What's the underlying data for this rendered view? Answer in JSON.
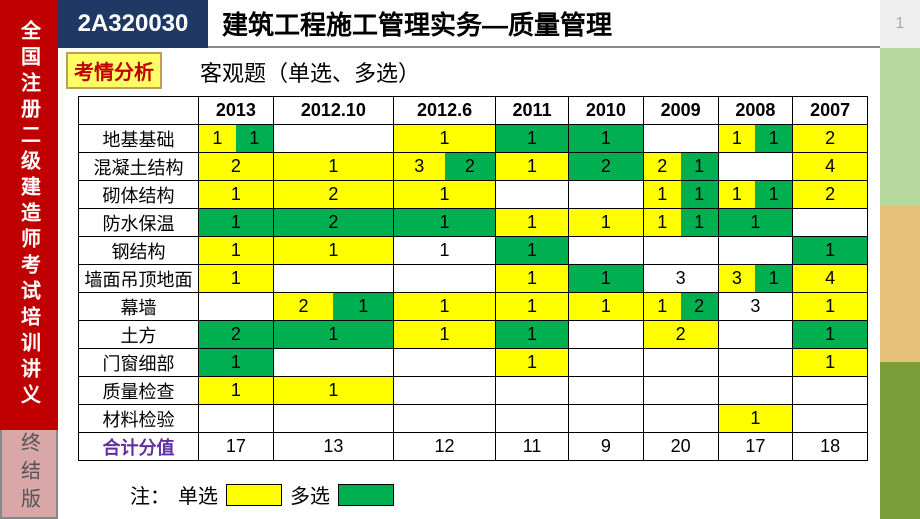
{
  "page_number": "1",
  "sidebar": {
    "red_text": "全国注册二级建造师考试培训讲义",
    "rose_text": "终结版"
  },
  "header": {
    "code": "2A320030",
    "title": "建筑工程施工管理实务—质量管理"
  },
  "badge": "考情分析",
  "subtitle": "客观题（单选、多选）",
  "legend": {
    "prefix": "注：",
    "single_label": "单选",
    "multi_label": "多选"
  },
  "colors": {
    "single": "#ffff00",
    "multi": "#00b050",
    "header_bg": "#203864",
    "sidebar_red": "#c00000",
    "sidebar_rose": "#d9a7a7",
    "right_a": "#b7d8a0",
    "right_b": "#e6c17a",
    "right_c": "#7a9e3a"
  },
  "table": {
    "type": "table",
    "year_headers": [
      "2013",
      "2012.10",
      "2012.6",
      "2011",
      "2010",
      "2009",
      "2008",
      "2007"
    ],
    "rows": [
      {
        "label": "地基基础",
        "cells": [
          {
            "s": "1",
            "m": "1"
          },
          {},
          {
            "s": "1"
          },
          {
            "m": "1"
          },
          {
            "m": "1"
          },
          {},
          {
            "s": "1",
            "m": "1"
          },
          {
            "s": "2"
          }
        ]
      },
      {
        "label": "混凝土结构",
        "cells": [
          {
            "s": "2"
          },
          {
            "s": "1"
          },
          {
            "s": "3",
            "m": "2"
          },
          {
            "s": "1"
          },
          {
            "m": "2"
          },
          {
            "s": "2",
            "m": "1"
          },
          {},
          {
            "s": "4"
          }
        ]
      },
      {
        "label": "砌体结构",
        "cells": [
          {
            "s": "1"
          },
          {
            "s": "2"
          },
          {
            "s": "1"
          },
          {},
          {},
          {
            "s": "1",
            "m": "1"
          },
          {
            "s": "1",
            "m": "1"
          },
          {
            "s": "2"
          }
        ]
      },
      {
        "label": "防水保温",
        "cells": [
          {
            "m": "1"
          },
          {
            "m": "2"
          },
          {
            "m": "1"
          },
          {
            "s": "1"
          },
          {
            "s": "1"
          },
          {
            "s": "1",
            "m": "1"
          },
          {
            "m": "1"
          },
          {}
        ]
      },
      {
        "label": "钢结构",
        "cells": [
          {
            "s": "1"
          },
          {
            "s": "1"
          },
          {
            "plain": "1"
          },
          {
            "m": "1"
          },
          {},
          {},
          {},
          {
            "m": "1"
          }
        ]
      },
      {
        "label": "墙面吊顶地面",
        "cells": [
          {
            "s": "1"
          },
          {},
          {},
          {
            "s": "1"
          },
          {
            "m": "1"
          },
          {
            "plain": "3"
          },
          {
            "s": "3",
            "m": "1"
          },
          {
            "s": "4"
          }
        ]
      },
      {
        "label": "幕墙",
        "cells": [
          {},
          {
            "s": "2",
            "m": "1"
          },
          {
            "s": "1"
          },
          {
            "s": "1"
          },
          {
            "s": "1"
          },
          {
            "s": "1",
            "m": "2"
          },
          {
            "plain": "3"
          },
          {
            "s": "1"
          }
        ]
      },
      {
        "label": "土方",
        "cells": [
          {
            "m": "2"
          },
          {
            "m": "1"
          },
          {
            "s": "1"
          },
          {
            "m": "1"
          },
          {},
          {
            "s": "2"
          },
          {},
          {
            "m": "1"
          }
        ]
      },
      {
        "label": "门窗细部",
        "cells": [
          {
            "m": "1"
          },
          {},
          {},
          {
            "s": "1"
          },
          {},
          {},
          {},
          {
            "s": "1"
          }
        ]
      },
      {
        "label": "质量检查",
        "cells": [
          {
            "s": "1"
          },
          {
            "s": "1"
          },
          {},
          {},
          {},
          {},
          {},
          {}
        ]
      },
      {
        "label": "材料检验",
        "cells": [
          {},
          {},
          {},
          {},
          {},
          {},
          {
            "s": "1"
          },
          {}
        ]
      }
    ],
    "total": {
      "label": "合计分值",
      "values": [
        "17",
        "13",
        "12",
        "11",
        "9",
        "20",
        "17",
        "18"
      ]
    }
  }
}
